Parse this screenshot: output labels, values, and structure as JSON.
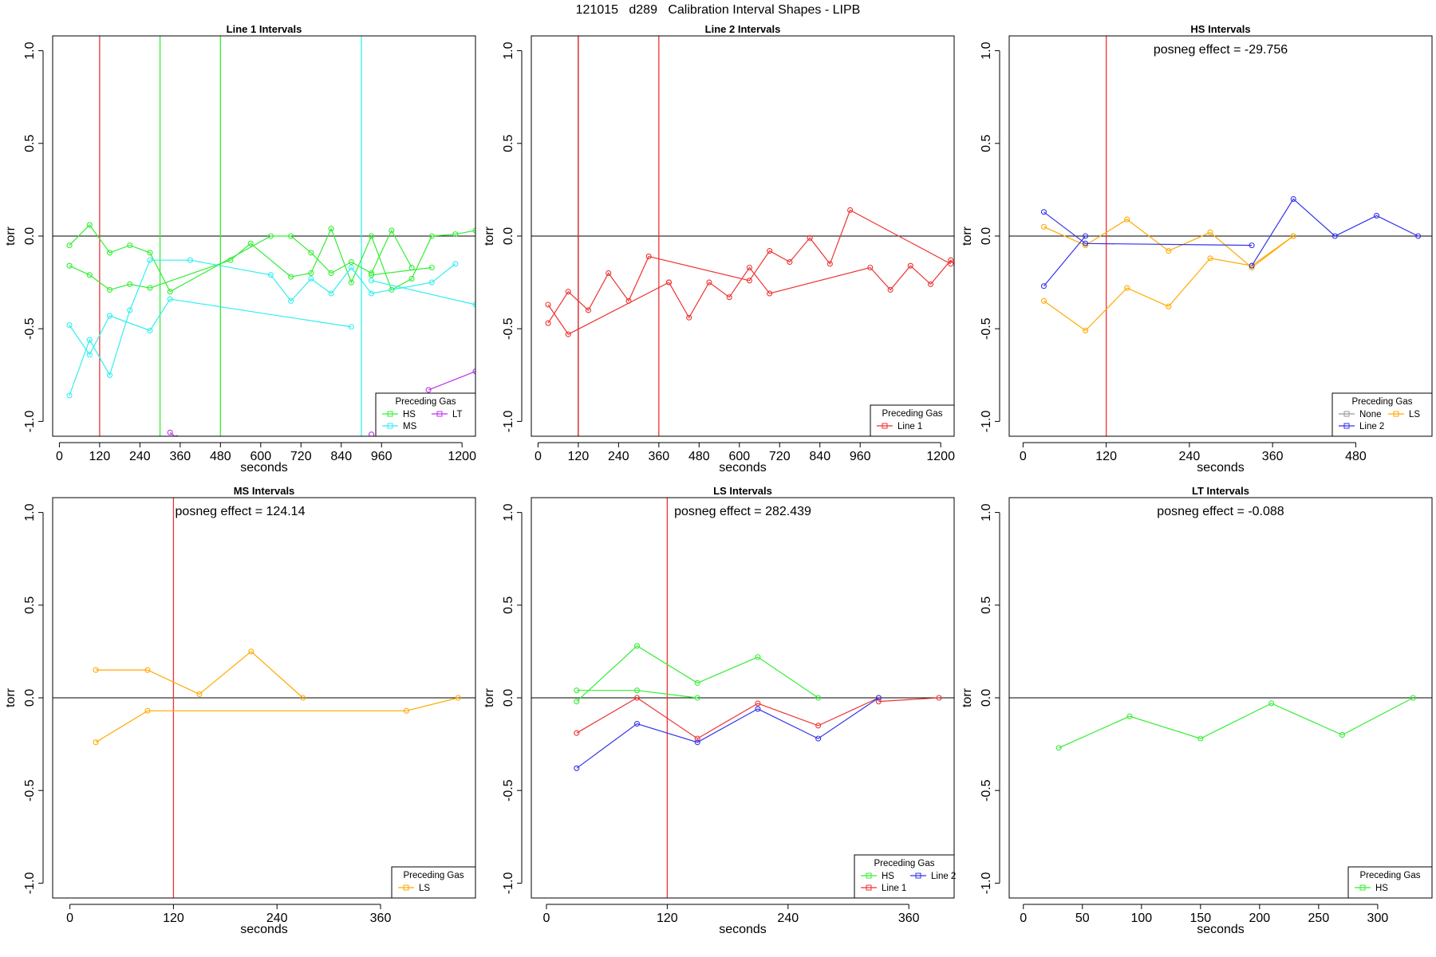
{
  "figure_title": "121015   d289   Calibration Interval Shapes - LIPB",
  "chart_data": [
    {
      "type": "line",
      "title": "Line 1 Intervals",
      "xlabel": "seconds",
      "ylabel": "torr",
      "xlim": [
        -20,
        1240
      ],
      "ylim": [
        -1.08,
        1.08
      ],
      "xticks": [
        0,
        120,
        240,
        360,
        480,
        600,
        720,
        840,
        960,
        1200
      ],
      "yticks": [
        -1.0,
        -0.5,
        0.0,
        0.5,
        1.0
      ],
      "vlines": [
        {
          "x": 120,
          "color": "#ee3333"
        },
        {
          "x": 300,
          "color": "#33ee33"
        },
        {
          "x": 480,
          "color": "#33ee33"
        },
        {
          "x": 900,
          "color": "#33eeee"
        }
      ],
      "annotation": "",
      "legend": {
        "title": "Preceding Gas",
        "items": [
          {
            "label": "HS",
            "color": "#33ee33"
          },
          {
            "label": "LT",
            "color": "#bb33ee"
          },
          {
            "label": "MS",
            "color": "#33eeee"
          }
        ],
        "columns": 2
      },
      "series": [
        {
          "name": "HS",
          "color": "#33ee33",
          "segments": [
            [
              [
                30,
                -0.05
              ],
              [
                90,
                0.06
              ],
              [
                150,
                -0.09
              ],
              [
                210,
                -0.05
              ],
              [
                270,
                -0.09
              ],
              [
                330,
                -0.3
              ],
              [
                630,
                0.0
              ],
              [
                690,
                0.0
              ],
              [
                750,
                -0.09
              ],
              [
                810,
                -0.2
              ],
              [
                870,
                -0.14
              ],
              [
                930,
                -0.2
              ],
              [
                990,
                0.03
              ],
              [
                1050,
                -0.17
              ]
            ],
            [
              [
                30,
                -0.16
              ],
              [
                90,
                -0.21
              ],
              [
                150,
                -0.29
              ],
              [
                210,
                -0.26
              ],
              [
                270,
                -0.28
              ],
              [
                510,
                -0.13
              ],
              [
                570,
                -0.04
              ],
              [
                690,
                -0.22
              ],
              [
                750,
                -0.2
              ],
              [
                810,
                0.04
              ],
              [
                870,
                -0.25
              ],
              [
                930,
                0.0
              ],
              [
                990,
                -0.29
              ],
              [
                1050,
                -0.23
              ],
              [
                1110,
                0.0
              ],
              [
                1180,
                0.01
              ],
              [
                1240,
                0.03
              ]
            ],
            [
              [
                930,
                -0.21
              ],
              [
                1110,
                -0.17
              ]
            ]
          ]
        },
        {
          "name": "MS",
          "color": "#33eeee",
          "segments": [
            [
              [
                30,
                -0.48
              ],
              [
                90,
                -0.64
              ],
              [
                150,
                -0.43
              ],
              [
                270,
                -0.51
              ],
              [
                330,
                -0.34
              ],
              [
                870,
                -0.49
              ]
            ],
            [
              [
                30,
                -0.86
              ],
              [
                90,
                -0.56
              ],
              [
                150,
                -0.75
              ],
              [
                210,
                -0.4
              ],
              [
                270,
                -0.13
              ],
              [
                390,
                -0.13
              ],
              [
                630,
                -0.21
              ],
              [
                690,
                -0.35
              ],
              [
                750,
                -0.23
              ],
              [
                810,
                -0.31
              ],
              [
                870,
                -0.17
              ],
              [
                930,
                -0.31
              ],
              [
                1110,
                -0.25
              ],
              [
                1180,
                -0.15
              ]
            ],
            [
              [
                930,
                -0.24
              ],
              [
                1240,
                -0.37
              ]
            ]
          ]
        },
        {
          "name": "LT",
          "color": "#bb33ee",
          "segments": [
            [
              [
                330,
                -1.06
              ],
              [
                350,
                -1.09
              ]
            ],
            [
              [
                930,
                -1.07
              ]
            ],
            [
              [
                1100,
                -0.83
              ],
              [
                1240,
                -0.73
              ]
            ]
          ]
        }
      ]
    },
    {
      "type": "line",
      "title": "Line 2 Intervals",
      "xlabel": "seconds",
      "ylabel": "torr",
      "xlim": [
        -20,
        1240
      ],
      "ylim": [
        -1.08,
        1.08
      ],
      "xticks": [
        0,
        120,
        240,
        360,
        480,
        600,
        720,
        840,
        960,
        1200
      ],
      "yticks": [
        -1.0,
        -0.5,
        0.0,
        0.5,
        1.0
      ],
      "vlines": [
        {
          "x": 120,
          "color": "#000000"
        },
        {
          "x": 120,
          "color": "#ee3333"
        },
        {
          "x": 360,
          "color": "#ee3333"
        }
      ],
      "annotation": "",
      "legend": {
        "title": "Preceding Gas",
        "items": [
          {
            "label": "Line 1",
            "color": "#ee3333"
          }
        ],
        "columns": 1
      },
      "series": [
        {
          "name": "Line 1",
          "color": "#ee3333",
          "segments": [
            [
              [
                30,
                -0.37
              ],
              [
                90,
                -0.53
              ],
              [
                390,
                -0.25
              ]
            ],
            [
              [
                30,
                -0.47
              ],
              [
                90,
                -0.3
              ],
              [
                150,
                -0.4
              ],
              [
                210,
                -0.2
              ],
              [
                270,
                -0.35
              ],
              [
                330,
                -0.11
              ],
              [
                630,
                -0.24
              ],
              [
                690,
                -0.08
              ],
              [
                750,
                -0.14
              ],
              [
                810,
                -0.01
              ],
              [
                870,
                -0.15
              ],
              [
                930,
                0.14
              ],
              [
                1230,
                -0.15
              ]
            ],
            [
              [
                390,
                -0.25
              ],
              [
                450,
                -0.44
              ],
              [
                510,
                -0.25
              ],
              [
                570,
                -0.33
              ],
              [
                630,
                -0.17
              ],
              [
                690,
                -0.31
              ],
              [
                990,
                -0.17
              ],
              [
                1050,
                -0.29
              ],
              [
                1110,
                -0.16
              ],
              [
                1170,
                -0.26
              ],
              [
                1230,
                -0.13
              ],
              [
                1250,
                -0.17
              ]
            ]
          ]
        }
      ]
    },
    {
      "type": "line",
      "title": "HS Intervals",
      "xlabel": "seconds",
      "ylabel": "torr",
      "xlim": [
        -20,
        590
      ],
      "ylim": [
        -1.08,
        1.08
      ],
      "xticks": [
        0,
        120,
        240,
        360,
        480
      ],
      "yticks": [
        -1.0,
        -0.5,
        0.0,
        0.5,
        1.0
      ],
      "vlines": [
        {
          "x": 120,
          "color": "#ee3333"
        }
      ],
      "annotation": "posneg effect = -29.756",
      "legend": {
        "title": "Preceding Gas",
        "items": [
          {
            "label": "None",
            "color": "#999999"
          },
          {
            "label": "LS",
            "color": "#ffaa00"
          },
          {
            "label": "Line 2",
            "color": "#3333ee"
          }
        ],
        "columns": 2
      },
      "series": [
        {
          "name": "LS",
          "color": "#ffaa00",
          "segments": [
            [
              [
                30,
                0.05
              ],
              [
                90,
                -0.05
              ],
              [
                150,
                0.09
              ],
              [
                210,
                -0.08
              ],
              [
                270,
                0.02
              ],
              [
                330,
                -0.17
              ],
              [
                390,
                0.0
              ]
            ],
            [
              [
                30,
                -0.35
              ],
              [
                90,
                -0.51
              ],
              [
                150,
                -0.28
              ],
              [
                210,
                -0.38
              ],
              [
                270,
                -0.12
              ],
              [
                330,
                -0.16
              ],
              [
                390,
                0.0
              ]
            ]
          ]
        },
        {
          "name": "Line 2",
          "color": "#3333ee",
          "segments": [
            [
              [
                30,
                0.13
              ],
              [
                90,
                -0.04
              ],
              [
                330,
                -0.05
              ]
            ],
            [
              [
                30,
                -0.27
              ],
              [
                90,
                0.0
              ]
            ],
            [
              [
                330,
                -0.16
              ],
              [
                390,
                0.2
              ],
              [
                450,
                0.0
              ],
              [
                510,
                0.11
              ],
              [
                570,
                0.0
              ]
            ]
          ]
        }
      ]
    },
    {
      "type": "line",
      "title": "MS Intervals",
      "xlabel": "seconds",
      "ylabel": "torr",
      "xlim": [
        -20,
        470
      ],
      "ylim": [
        -1.08,
        1.08
      ],
      "xticks": [
        0,
        120,
        240,
        360
      ],
      "yticks": [
        -1.0,
        -0.5,
        0.0,
        0.5,
        1.0
      ],
      "vlines": [
        {
          "x": 120,
          "color": "#ee3333"
        }
      ],
      "annotation": "posneg effect = 124.14",
      "legend": {
        "title": "Preceding Gas",
        "items": [
          {
            "label": "LS",
            "color": "#ffaa00"
          }
        ],
        "columns": 1
      },
      "series": [
        {
          "name": "LS",
          "color": "#ffaa00",
          "segments": [
            [
              [
                30,
                0.15
              ],
              [
                90,
                0.15
              ],
              [
                150,
                0.02
              ],
              [
                210,
                0.25
              ],
              [
                270,
                0.0
              ]
            ],
            [
              [
                30,
                -0.24
              ],
              [
                90,
                -0.07
              ],
              [
                390,
                -0.07
              ],
              [
                450,
                0.0
              ]
            ]
          ]
        }
      ]
    },
    {
      "type": "line",
      "title": "LS Intervals",
      "xlabel": "seconds",
      "ylabel": "torr",
      "xlim": [
        -15,
        405
      ],
      "ylim": [
        -1.08,
        1.08
      ],
      "xticks": [
        0,
        120,
        240,
        360
      ],
      "yticks": [
        -1.0,
        -0.5,
        0.0,
        0.5,
        1.0
      ],
      "vlines": [
        {
          "x": 120,
          "color": "#ee3333"
        }
      ],
      "annotation": "posneg effect = 282.439",
      "legend": {
        "title": "Preceding Gas",
        "items": [
          {
            "label": "HS",
            "color": "#33ee33"
          },
          {
            "label": "Line 2",
            "color": "#3333ee"
          },
          {
            "label": "Line 1",
            "color": "#ee3333"
          }
        ],
        "columns": 2
      },
      "series": [
        {
          "name": "HS",
          "color": "#33ee33",
          "segments": [
            [
              [
                30,
                0.04
              ],
              [
                90,
                0.04
              ],
              [
                150,
                0.0
              ]
            ],
            [
              [
                30,
                -0.02
              ],
              [
                90,
                0.28
              ],
              [
                150,
                0.08
              ],
              [
                210,
                0.22
              ],
              [
                270,
                0.0
              ]
            ]
          ]
        },
        {
          "name": "Line 1",
          "color": "#ee3333",
          "segments": [
            [
              [
                30,
                -0.19
              ],
              [
                90,
                0.0
              ],
              [
                150,
                -0.22
              ],
              [
                210,
                -0.03
              ],
              [
                270,
                -0.15
              ],
              [
                330,
                0.0
              ]
            ],
            [
              [
                330,
                -0.02
              ],
              [
                390,
                0.0
              ]
            ]
          ]
        },
        {
          "name": "Line 2",
          "color": "#3333ee",
          "segments": [
            [
              [
                30,
                -0.38
              ],
              [
                90,
                -0.14
              ],
              [
                150,
                -0.24
              ],
              [
                210,
                -0.06
              ],
              [
                270,
                -0.22
              ],
              [
                330,
                0.0
              ]
            ]
          ]
        }
      ]
    },
    {
      "type": "line",
      "title": "LT Intervals",
      "xlabel": "seconds",
      "ylabel": "torr",
      "xlim": [
        -12,
        346
      ],
      "ylim": [
        -1.08,
        1.08
      ],
      "xticks": [
        0,
        50,
        100,
        150,
        200,
        250,
        300
      ],
      "yticks": [
        -1.0,
        -0.5,
        0.0,
        0.5,
        1.0
      ],
      "vlines": [],
      "annotation": "posneg effect = -0.088",
      "legend": {
        "title": "Preceding Gas",
        "items": [
          {
            "label": "HS",
            "color": "#33ee33"
          }
        ],
        "columns": 1
      },
      "series": [
        {
          "name": "HS",
          "color": "#33ee33",
          "segments": [
            [
              [
                30,
                -0.27
              ],
              [
                90,
                -0.1
              ],
              [
                150,
                -0.22
              ],
              [
                210,
                -0.03
              ],
              [
                270,
                -0.2
              ],
              [
                330,
                0.0
              ]
            ]
          ]
        }
      ]
    }
  ]
}
